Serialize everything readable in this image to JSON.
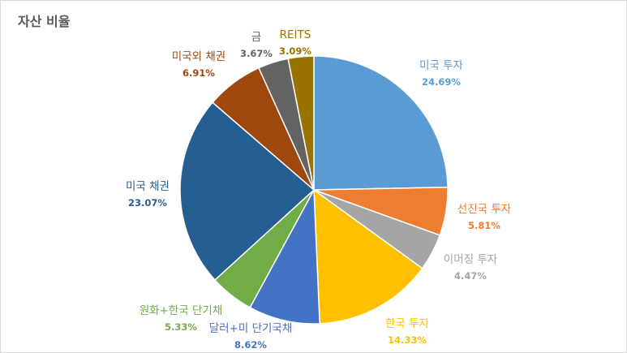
{
  "chart_data": {
    "type": "pie",
    "title": "자산 비율",
    "slices": [
      {
        "label": "미국 투자",
        "value": 24.69,
        "value_label": "24.69%",
        "color": "#5B9BD5"
      },
      {
        "label": "선진국 투자",
        "value": 5.81,
        "value_label": "5.81%",
        "color": "#ED7D31"
      },
      {
        "label": "이머징 투자",
        "value": 4.47,
        "value_label": "4.47%",
        "color": "#A5A5A5"
      },
      {
        "label": "한국 투자",
        "value": 14.33,
        "value_label": "14.33%",
        "color": "#FFC000"
      },
      {
        "label": "달러+미 단기국채",
        "value": 8.62,
        "value_label": "8.62%",
        "color": "#4472C4"
      },
      {
        "label": "원화+한국 단기채",
        "value": 5.33,
        "value_label": "5.33%",
        "color": "#70AD47"
      },
      {
        "label": "미국 채권",
        "value": 23.07,
        "value_label": "23.07%",
        "color": "#255E91"
      },
      {
        "label": "미국외 채권",
        "value": 6.91,
        "value_label": "6.91%",
        "color": "#9E480E"
      },
      {
        "label": "금",
        "value": 3.67,
        "value_label": "3.67%",
        "color": "#636363"
      },
      {
        "label": "REITS",
        "value": 3.09,
        "value_label": "3.09%",
        "color": "#997300"
      }
    ],
    "start": "12 o'clock",
    "direction": "clockwise",
    "legend": "none"
  }
}
